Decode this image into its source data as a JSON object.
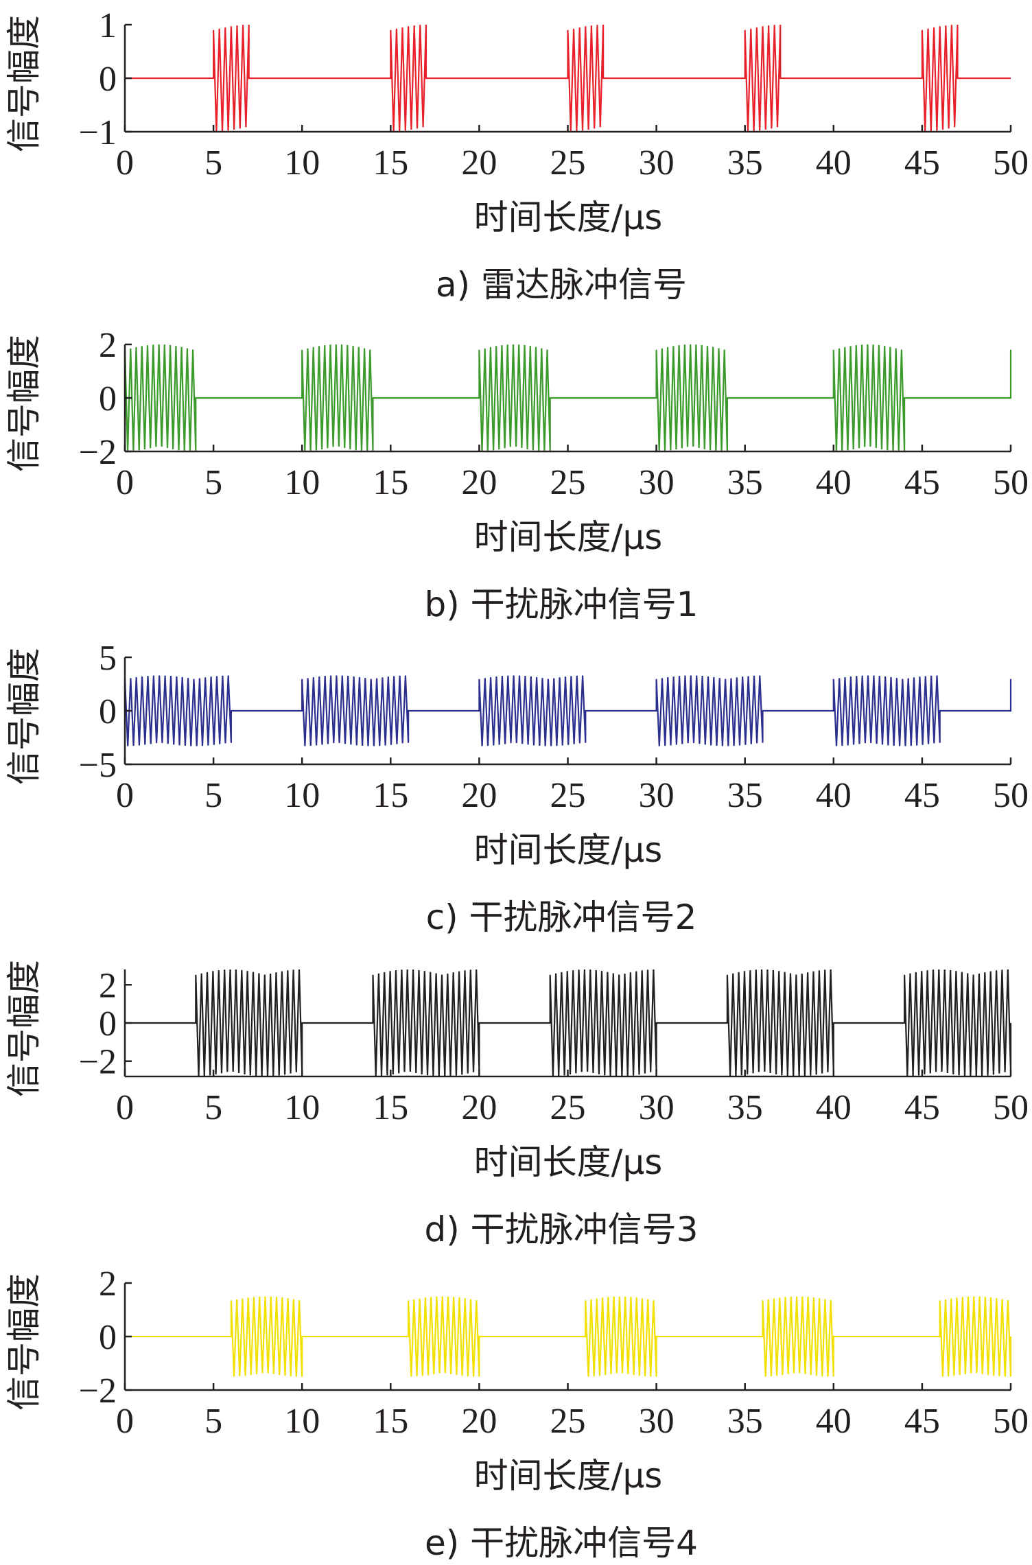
{
  "chart_data": [
    {
      "type": "line",
      "caption": "a) 雷达脉冲信号",
      "xlabel": "时间长度/μs",
      "ylabel": "信号幅度",
      "xlim": [
        0,
        50
      ],
      "ylim": [
        -1,
        1
      ],
      "xticks": [
        "0",
        "5",
        "10",
        "15",
        "20",
        "25",
        "30",
        "35",
        "40",
        "45",
        "50"
      ],
      "yticks": [
        "1",
        "0",
        "−1"
      ],
      "color": "#e8202a",
      "amplitude": 1,
      "pulses": [
        [
          5,
          7
        ],
        [
          15,
          17
        ],
        [
          25,
          27
        ],
        [
          35,
          37
        ],
        [
          45,
          47
        ]
      ]
    },
    {
      "type": "line",
      "caption": "b) 干扰脉冲信号1",
      "xlabel": "时间长度/μs",
      "ylabel": "信号幅度",
      "xlim": [
        0,
        50
      ],
      "ylim": [
        -2,
        2
      ],
      "xticks": [
        "0",
        "5",
        "10",
        "15",
        "20",
        "25",
        "30",
        "35",
        "40",
        "45",
        "50"
      ],
      "yticks": [
        "2",
        "0",
        "−2"
      ],
      "color": "#3a9a2a",
      "amplitude": 2,
      "pulses": [
        [
          0,
          4
        ],
        [
          10,
          14
        ],
        [
          20,
          24
        ],
        [
          30,
          34
        ],
        [
          40,
          44
        ],
        [
          50,
          50
        ]
      ]
    },
    {
      "type": "line",
      "caption": "c) 干扰脉冲信号2",
      "xlabel": "时间长度/μs",
      "ylabel": "信号幅度",
      "xlim": [
        0,
        50
      ],
      "ylim": [
        -5,
        5
      ],
      "xticks": [
        "0",
        "5",
        "10",
        "15",
        "20",
        "25",
        "30",
        "35",
        "40",
        "45",
        "50"
      ],
      "yticks": [
        "5",
        "0",
        "−5"
      ],
      "color": "#2b2f8f",
      "amplitude": 3.3,
      "pulses": [
        [
          0,
          6
        ],
        [
          10,
          16
        ],
        [
          20,
          26
        ],
        [
          30,
          36
        ],
        [
          40,
          46
        ],
        [
          50,
          50
        ]
      ]
    },
    {
      "type": "line",
      "caption": "d) 干扰脉冲信号3",
      "xlabel": "时间长度/μs",
      "ylabel": "信号幅度",
      "xlim": [
        0,
        50
      ],
      "ylim": [
        -2.8,
        2.8
      ],
      "xticks": [
        "0",
        "5",
        "10",
        "15",
        "20",
        "25",
        "30",
        "35",
        "40",
        "45",
        "50"
      ],
      "yticks": [
        "2",
        "0",
        "−2"
      ],
      "yticks_values": [
        2,
        0,
        -2
      ],
      "color": "#231f20",
      "amplitude": 2.8,
      "pulses": [
        [
          4,
          10
        ],
        [
          14,
          20
        ],
        [
          24,
          30
        ],
        [
          34,
          40
        ],
        [
          44,
          50
        ]
      ]
    },
    {
      "type": "line",
      "caption": "e) 干扰脉冲信号4",
      "xlabel": "时间长度/μs",
      "ylabel": "信号幅度",
      "xlim": [
        0,
        50
      ],
      "ylim": [
        -2,
        2
      ],
      "xticks": [
        "0",
        "5",
        "10",
        "15",
        "20",
        "25",
        "30",
        "35",
        "40",
        "45",
        "50"
      ],
      "yticks": [
        "2",
        "0",
        "−2"
      ],
      "color": "#f2e100",
      "amplitude": 1.5,
      "pulses": [
        [
          6,
          10
        ],
        [
          16,
          20
        ],
        [
          26,
          30
        ],
        [
          36,
          40
        ],
        [
          46,
          50
        ]
      ]
    }
  ]
}
